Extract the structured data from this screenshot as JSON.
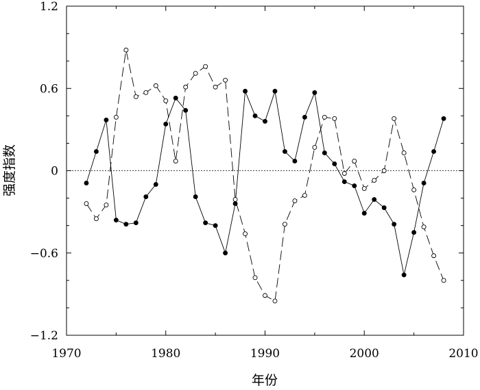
{
  "chart_data": {
    "type": "line",
    "xlabel": "年份",
    "ylabel": "强度指数",
    "xlim": [
      1970,
      2010
    ],
    "ylim": [
      -1.2,
      1.2
    ],
    "xticks": [
      1970,
      1980,
      1990,
      2000,
      2010
    ],
    "xtick_labels": [
      "1970",
      "1980",
      "1990",
      "2000",
      "2010"
    ],
    "yticks": [
      -1.2,
      -0.6,
      0,
      0.6,
      1.2
    ],
    "ytick_labels": [
      "−1.2",
      "−0.6",
      "0",
      "0.6",
      "1.2"
    ],
    "grid": false,
    "zero_line": true,
    "series": [
      {
        "marker": "filled-circle",
        "line_style": "solid",
        "color": "#000000",
        "x": [
          1972,
          1973,
          1974,
          1975,
          1976,
          1977,
          1978,
          1979,
          1980,
          1981,
          1982,
          1983,
          1984,
          1985,
          1986,
          1987,
          1988,
          1989,
          1990,
          1991,
          1992,
          1993,
          1994,
          1995,
          1996,
          1997,
          1998,
          1999,
          2000,
          2001,
          2002,
          2003,
          2004,
          2005,
          2006,
          2007,
          2008
        ],
        "y": [
          -0.09,
          0.14,
          0.37,
          -0.36,
          -0.39,
          -0.38,
          -0.19,
          -0.1,
          0.34,
          0.53,
          0.44,
          -0.19,
          -0.38,
          -0.4,
          -0.6,
          -0.24,
          0.58,
          0.4,
          0.36,
          0.58,
          0.14,
          0.07,
          0.39,
          0.57,
          0.13,
          0.05,
          -0.08,
          -0.11,
          -0.31,
          -0.21,
          -0.27,
          -0.39,
          -0.76,
          -0.45,
          -0.09,
          0.14,
          0.38
        ]
      },
      {
        "marker": "open-circle",
        "line_style": "dashed",
        "color": "#000000",
        "x": [
          1972,
          1973,
          1974,
          1975,
          1976,
          1977,
          1978,
          1979,
          1980,
          1981,
          1982,
          1983,
          1984,
          1985,
          1986,
          1987,
          1988,
          1989,
          1990,
          1991,
          1992,
          1993,
          1994,
          1995,
          1996,
          1997,
          1998,
          1999,
          2000,
          2001,
          2002,
          2003,
          2004,
          2005,
          2006,
          2007,
          2008
        ],
        "y": [
          -0.24,
          -0.35,
          -0.25,
          0.39,
          0.88,
          0.54,
          0.57,
          0.62,
          0.51,
          0.07,
          0.61,
          0.71,
          0.76,
          0.61,
          0.66,
          -0.21,
          -0.46,
          -0.78,
          -0.91,
          -0.95,
          -0.39,
          -0.22,
          -0.18,
          0.17,
          0.39,
          0.38,
          -0.02,
          0.07,
          -0.13,
          -0.07,
          0.0,
          0.38,
          0.13,
          -0.14,
          -0.41,
          -0.62,
          -0.8
        ]
      }
    ]
  }
}
